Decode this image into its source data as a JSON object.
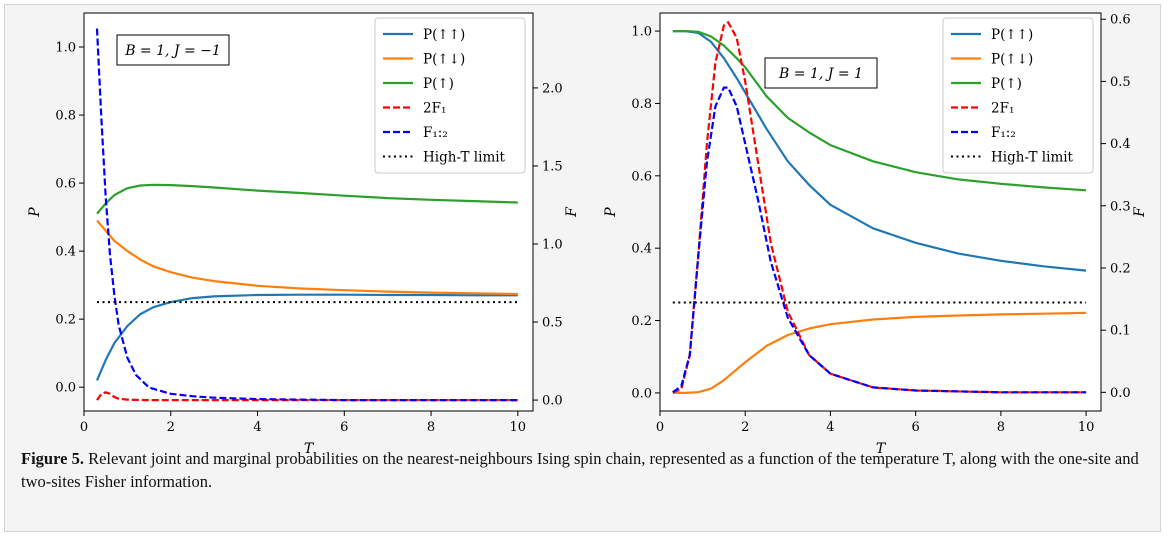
{
  "caption": {
    "label": "Figure 5.",
    "text": " Relevant joint and marginal probabilities on the nearest-neighbours Ising spin chain, represented as a function of the temperature T, along with the one-site and two-sites Fisher information."
  },
  "colors": {
    "P_upup": "#1f77b4",
    "P_updown": "#ff7f0e",
    "P_up": "#2ca02c",
    "F1x2": "#ff0000",
    "F12": "#0000ff",
    "limit": "#000000"
  },
  "chart_data": [
    {
      "type": "line",
      "annotation": "B = 1, J = −1",
      "xlabel": "T",
      "ylabel": "P",
      "y2label": "F",
      "xlim": [
        0,
        10.35
      ],
      "ylim": [
        -0.07,
        1.1
      ],
      "y2lim": [
        -0.07,
        2.48
      ],
      "xticks": [
        0,
        2,
        4,
        6,
        8,
        10
      ],
      "yticks": [
        0.0,
        0.2,
        0.4,
        0.6,
        0.8,
        1.0
      ],
      "y2ticks": [
        0.0,
        0.5,
        1.0,
        1.5,
        2.0
      ],
      "legend": "top-right",
      "series": [
        {
          "name": "P(↑↑)",
          "axis": "P",
          "style": "solid",
          "x": [
            0.3,
            0.5,
            0.7,
            1.0,
            1.3,
            1.6,
            2.0,
            2.5,
            3.0,
            4.0,
            5.0,
            6.0,
            7.0,
            8.0,
            9.0,
            10.0
          ],
          "y": [
            0.02,
            0.08,
            0.13,
            0.18,
            0.215,
            0.235,
            0.25,
            0.262,
            0.267,
            0.271,
            0.272,
            0.272,
            0.271,
            0.271,
            0.27,
            0.27
          ]
        },
        {
          "name": "P(↑↓)",
          "axis": "P",
          "style": "solid",
          "x": [
            0.3,
            0.5,
            0.7,
            1.0,
            1.3,
            1.6,
            2.0,
            2.5,
            3.0,
            4.0,
            5.0,
            6.0,
            7.0,
            8.0,
            9.0,
            10.0
          ],
          "y": [
            0.49,
            0.46,
            0.43,
            0.4,
            0.375,
            0.355,
            0.338,
            0.322,
            0.312,
            0.298,
            0.29,
            0.285,
            0.281,
            0.278,
            0.276,
            0.274
          ]
        },
        {
          "name": "P(↑)",
          "axis": "P",
          "style": "solid",
          "x": [
            0.3,
            0.5,
            0.7,
            1.0,
            1.3,
            1.6,
            2.0,
            2.5,
            3.0,
            4.0,
            5.0,
            6.0,
            7.0,
            8.0,
            9.0,
            10.0
          ],
          "y": [
            0.51,
            0.54,
            0.565,
            0.585,
            0.593,
            0.595,
            0.594,
            0.591,
            0.587,
            0.578,
            0.571,
            0.563,
            0.556,
            0.551,
            0.547,
            0.543
          ]
        },
        {
          "name": "2F₁",
          "axis": "F",
          "style": "dashed",
          "x": [
            0.3,
            0.4,
            0.5,
            0.6,
            0.7,
            0.8,
            1.0,
            1.2,
            1.5,
            2.0,
            3.0,
            4.0,
            6.0,
            8.0,
            10.0
          ],
          "y": [
            0.0,
            0.04,
            0.05,
            0.04,
            0.02,
            0.008,
            0.003,
            0.001,
            0.0,
            0.0,
            0.0,
            0.0,
            0.0,
            0.0,
            0.0
          ]
        },
        {
          "name": "F₁:₂",
          "axis": "F",
          "style": "dashed",
          "x": [
            0.3,
            0.4,
            0.5,
            0.6,
            0.7,
            0.8,
            1.0,
            1.2,
            1.5,
            2.0,
            2.5,
            3.0,
            4.0,
            5.0,
            6.0,
            8.0,
            10.0
          ],
          "y": [
            2.38,
            1.8,
            1.3,
            0.93,
            0.67,
            0.48,
            0.27,
            0.16,
            0.08,
            0.04,
            0.025,
            0.015,
            0.006,
            0.003,
            0.0,
            0.0,
            0.0
          ]
        },
        {
          "name": "High-T limit",
          "axis": "P",
          "style": "dotted",
          "x": [
            0.3,
            10.0
          ],
          "y": [
            0.25,
            0.25
          ]
        }
      ]
    },
    {
      "type": "line",
      "annotation": "B = 1, J = 1",
      "xlabel": "T",
      "ylabel": "P",
      "y2label": "F",
      "xlim": [
        0,
        10.35
      ],
      "ylim": [
        -0.05,
        1.05
      ],
      "y2lim": [
        -0.03,
        0.61
      ],
      "xticks": [
        0,
        2,
        4,
        6,
        8,
        10
      ],
      "yticks": [
        0.0,
        0.2,
        0.4,
        0.6,
        0.8,
        1.0
      ],
      "y2ticks": [
        0.0,
        0.1,
        0.2,
        0.3,
        0.4,
        0.5,
        0.6
      ],
      "legend": "top-right",
      "series": [
        {
          "name": "P(↑↑)",
          "axis": "P",
          "style": "solid",
          "x": [
            0.3,
            0.6,
            0.9,
            1.2,
            1.5,
            1.8,
            2.0,
            2.5,
            3.0,
            3.5,
            4.0,
            5.0,
            6.0,
            7.0,
            8.0,
            9.0,
            10.0
          ],
          "y": [
            1.0,
            1.0,
            0.995,
            0.97,
            0.925,
            0.87,
            0.83,
            0.73,
            0.64,
            0.575,
            0.52,
            0.455,
            0.415,
            0.385,
            0.365,
            0.35,
            0.338
          ]
        },
        {
          "name": "P(↑↓)",
          "axis": "P",
          "style": "solid",
          "x": [
            0.3,
            0.6,
            0.9,
            1.2,
            1.5,
            1.8,
            2.0,
            2.5,
            3.0,
            3.5,
            4.0,
            5.0,
            6.0,
            7.0,
            8.0,
            9.0,
            10.0
          ],
          "y": [
            0.0,
            0.0,
            0.002,
            0.012,
            0.035,
            0.065,
            0.085,
            0.13,
            0.16,
            0.178,
            0.19,
            0.203,
            0.21,
            0.214,
            0.217,
            0.219,
            0.221
          ]
        },
        {
          "name": "P(↑)",
          "axis": "P",
          "style": "solid",
          "x": [
            0.3,
            0.6,
            0.9,
            1.2,
            1.5,
            1.8,
            2.0,
            2.5,
            3.0,
            3.5,
            4.0,
            5.0,
            6.0,
            7.0,
            8.0,
            9.0,
            10.0
          ],
          "y": [
            1.0,
            1.0,
            0.998,
            0.985,
            0.96,
            0.925,
            0.9,
            0.82,
            0.76,
            0.72,
            0.685,
            0.64,
            0.61,
            0.59,
            0.578,
            0.568,
            0.56
          ]
        },
        {
          "name": "2F₁",
          "axis": "F",
          "style": "dashed",
          "x": [
            0.3,
            0.5,
            0.7,
            0.9,
            1.1,
            1.3,
            1.5,
            1.6,
            1.8,
            2.0,
            2.3,
            2.6,
            3.0,
            3.5,
            4.0,
            5.0,
            6.0,
            8.0,
            10.0
          ],
          "y": [
            0.0,
            0.005,
            0.06,
            0.22,
            0.4,
            0.53,
            0.59,
            0.595,
            0.57,
            0.5,
            0.37,
            0.24,
            0.13,
            0.06,
            0.03,
            0.008,
            0.003,
            0.0,
            0.0
          ]
        },
        {
          "name": "F₁:₂",
          "axis": "F",
          "style": "dashed",
          "x": [
            0.3,
            0.5,
            0.7,
            0.9,
            1.1,
            1.3,
            1.5,
            1.6,
            1.8,
            2.0,
            2.3,
            2.6,
            3.0,
            3.5,
            4.0,
            5.0,
            6.0,
            8.0,
            10.0
          ],
          "y": [
            0.0,
            0.01,
            0.06,
            0.22,
            0.37,
            0.46,
            0.49,
            0.49,
            0.46,
            0.4,
            0.31,
            0.21,
            0.12,
            0.06,
            0.03,
            0.008,
            0.003,
            0.0,
            0.0
          ]
        },
        {
          "name": "High-T limit",
          "axis": "P",
          "style": "dotted",
          "x": [
            0.3,
            10.0
          ],
          "y": [
            0.25,
            0.25
          ]
        }
      ]
    }
  ]
}
